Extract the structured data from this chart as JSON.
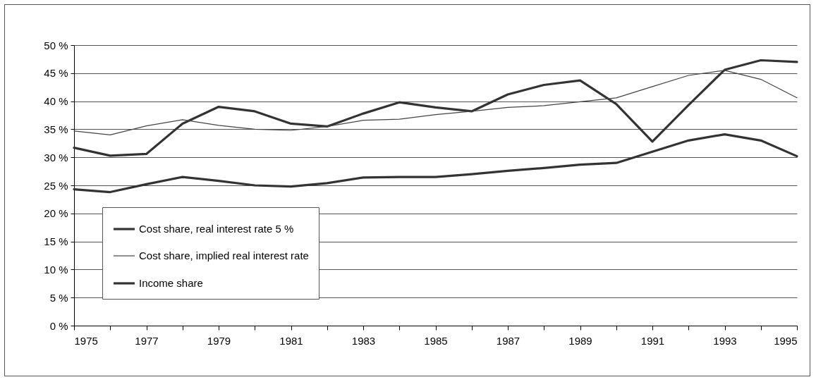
{
  "chart_data": {
    "type": "line",
    "x": [
      1975,
      1976,
      1977,
      1978,
      1979,
      1980,
      1981,
      1982,
      1983,
      1984,
      1985,
      1986,
      1987,
      1988,
      1989,
      1990,
      1991,
      1992,
      1993,
      1994,
      1995
    ],
    "series": [
      {
        "name": "Cost share, real interest rate 5 %",
        "color": "#333333",
        "values": [
          31.7,
          30.3,
          30.6,
          36,
          39,
          38.2,
          36,
          35.5,
          37.8,
          39.8,
          38.9,
          38.2,
          41.2,
          42.9,
          43.7,
          39.5,
          32.8,
          39.3,
          45.6,
          47.3,
          47
        ]
      },
      {
        "name": "Cost share, implied real interest rate",
        "color": "#444444",
        "values": [
          34.7,
          34,
          35.6,
          36.7,
          35.7,
          35,
          34.8,
          35.5,
          36.6,
          36.8,
          37.6,
          38.2,
          38.9,
          39.2,
          39.9,
          40.6,
          42.6,
          44.6,
          45.5,
          43.9,
          40.6
        ]
      },
      {
        "name": "Income share",
        "color": "#333333",
        "values": [
          24.3,
          23.8,
          25.2,
          26.5,
          25.8,
          25,
          24.8,
          25.4,
          26.4,
          26.5,
          26.5,
          27,
          27.6,
          28.1,
          28.7,
          29,
          31,
          33,
          34.1,
          33,
          30.2
        ]
      }
    ],
    "xlim": [
      1975,
      1995
    ],
    "xticks": [
      1975,
      {
        "value": 1976,
        "label": null
      },
      1977,
      {
        "value": 1978,
        "label": null
      },
      1979,
      {
        "value": 1980,
        "label": null
      },
      1981,
      {
        "value": 1982,
        "label": null
      },
      1983,
      {
        "value": 1984,
        "label": null
      },
      1985,
      {
        "value": 1986,
        "label": null
      },
      1987,
      {
        "value": 1988,
        "label": null
      },
      1989,
      {
        "value": 1990,
        "label": null
      },
      1991,
      {
        "value": 1992,
        "label": null
      },
      1993,
      {
        "value": 1994,
        "label": null
      },
      1995
    ],
    "ylim": [
      0,
      50
    ],
    "yticks": [
      {
        "value": 0,
        "label": "0 %"
      },
      {
        "value": 5,
        "label": "5 %"
      },
      {
        "value": 10,
        "label": "10 %"
      },
      {
        "value": 15,
        "label": "15 %"
      },
      {
        "value": 20,
        "label": "20 %"
      },
      {
        "value": 25,
        "label": "25 %"
      },
      {
        "value": 30,
        "label": "30 %"
      },
      {
        "value": 35,
        "label": "35 %"
      },
      {
        "value": 40,
        "label": "40 %"
      },
      {
        "value": 45,
        "label": "45 %"
      },
      {
        "value": 50,
        "label": "50 %"
      }
    ],
    "grid": "y",
    "legend": "bottom left",
    "marker": "none",
    "line_style": "solid"
  }
}
